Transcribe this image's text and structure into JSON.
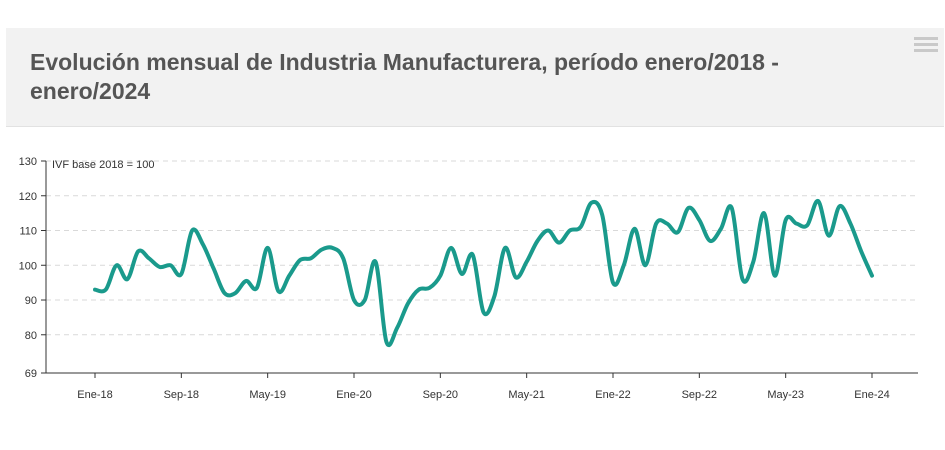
{
  "header": {
    "title": "Evolución mensual de Industria Manufacturera, período enero/2018 - enero/2024",
    "menu_icon": "hamburger-menu-icon"
  },
  "chart_data": {
    "type": "line",
    "title": "Evolución mensual de Industria Manufacturera, período enero/2018 - enero/2024",
    "ylabel": "IVF base 2018 = 100",
    "xlabel": "",
    "ylim": [
      69,
      130
    ],
    "y_ticks": [
      69,
      80,
      90,
      100,
      110,
      120,
      130
    ],
    "x_tick_labels": [
      "Ene-18",
      "Sep-18",
      "May-19",
      "Ene-20",
      "Sep-20",
      "May-21",
      "Ene-22",
      "Sep-22",
      "May-23",
      "Ene-24"
    ],
    "x_tick_months": [
      0,
      8,
      16,
      24,
      32,
      40,
      48,
      56,
      64,
      72
    ],
    "grid": true,
    "line_color": "#1a9a8c",
    "series": [
      {
        "name": "Industria Manufacturera",
        "values": [
          93,
          93,
          100,
          96,
          104,
          102,
          99.5,
          100,
          97.5,
          110,
          106,
          99,
          92,
          92,
          95.5,
          93.5,
          105,
          92.5,
          97,
          101.5,
          102,
          104.5,
          105,
          102,
          90,
          90,
          101,
          78,
          82,
          89,
          93,
          93.5,
          97,
          105,
          97.5,
          103,
          86.5,
          91,
          105,
          96.5,
          101,
          107,
          110,
          106.5,
          110,
          111,
          118,
          114.5,
          95,
          100,
          110.5,
          100,
          112,
          112,
          109.5,
          116.5,
          113,
          107,
          110.5,
          116.5,
          96,
          101,
          115,
          97,
          113,
          112,
          111.5,
          118.5,
          108.5,
          117,
          112,
          104,
          97
        ]
      }
    ]
  }
}
